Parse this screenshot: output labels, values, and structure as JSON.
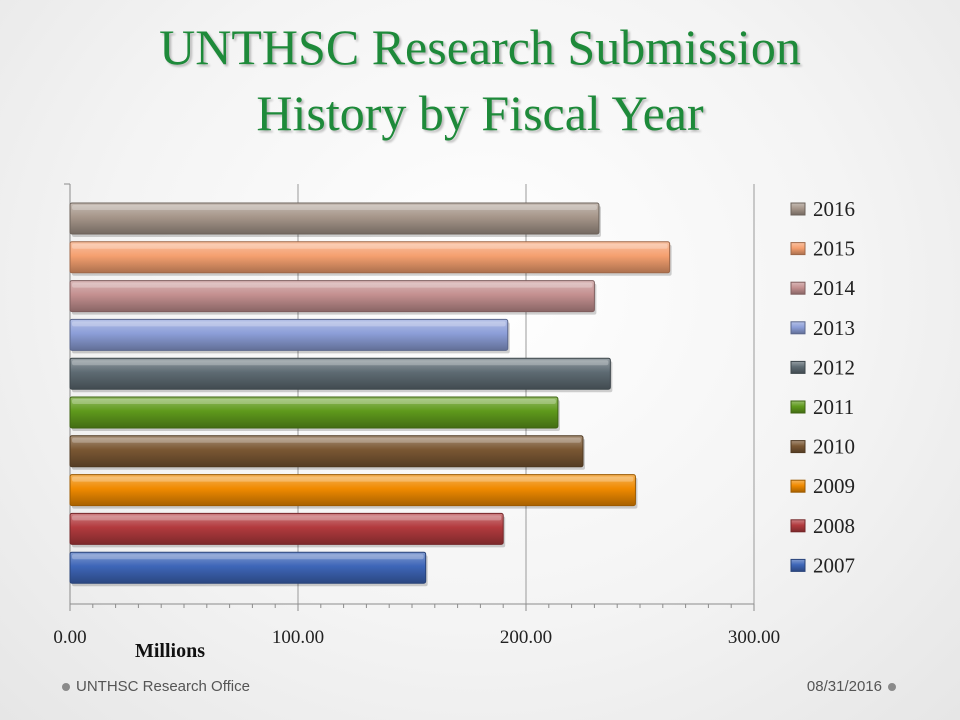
{
  "slide": {
    "title_line1": "UNTHSC Research Submission",
    "title_line2": "History by Fiscal Year",
    "footer_left": "UNTHSC Research Office",
    "footer_right": "08/31/2016"
  },
  "chart_data": {
    "type": "bar",
    "orientation": "horizontal",
    "categories": [
      "2016",
      "2015",
      "2014",
      "2013",
      "2012",
      "2011",
      "2010",
      "2009",
      "2008",
      "2007"
    ],
    "values": [
      232,
      263,
      230,
      192,
      237,
      214,
      225,
      248,
      190,
      156
    ],
    "colors": [
      "#a6968a",
      "#f5a070",
      "#c49090",
      "#8c9ed8",
      "#5e6b73",
      "#5f9a1c",
      "#7a5733",
      "#f08a00",
      "#b23a3e",
      "#3e66b8"
    ],
    "xlim": [
      0,
      300
    ],
    "x_ticks": [
      "0.00",
      "100.00",
      "200.00",
      "300.00"
    ],
    "x_tick_values": [
      0,
      100,
      200,
      300
    ],
    "xlabel": "Millions",
    "legend": [
      "2016",
      "2015",
      "2014",
      "2013",
      "2012",
      "2011",
      "2010",
      "2009",
      "2008",
      "2007"
    ],
    "legend_position": "right",
    "grid": "vertical major"
  }
}
